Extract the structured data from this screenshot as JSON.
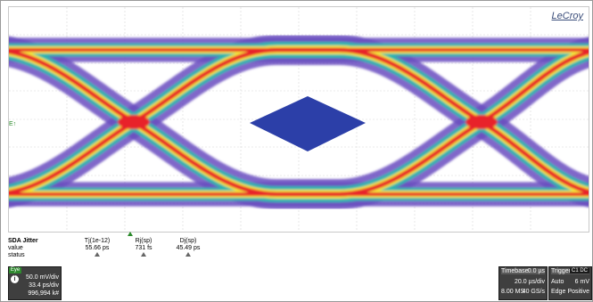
{
  "brand": "LeCroy",
  "colors": {
    "eye_outer": "#6a4ec0",
    "eye_mid": "#26b8b0",
    "eye_inner": "#f4e63a",
    "eye_core": "#e8242c",
    "mask": "#2c3fa8"
  },
  "measurements": {
    "title": "SDA Jitter",
    "row_labels": [
      "value",
      "status"
    ],
    "columns": [
      {
        "name": "Tj(1e-12)",
        "value": "55.66 ps"
      },
      {
        "name": "Rj(sp)",
        "value": "731 fs"
      },
      {
        "name": "Dj(sp)",
        "value": "45.49 ps"
      }
    ]
  },
  "channel": {
    "tag": "Eye",
    "info_icon": "info-icon",
    "vdiv": "50.0 mV/div",
    "hdiv": "33.4 ps/div",
    "count": "996,994 k#"
  },
  "timebase": {
    "label": "Timebase",
    "delay": "0.0 µs",
    "tdiv": "20.0 µs/div",
    "samples": "8.00 MS",
    "rate": "40 GS/s"
  },
  "trigger": {
    "label": "Trigger",
    "badge": "C1 DC",
    "mode": "Auto",
    "level": "6 mV",
    "type": "Edge",
    "slope": "Positive"
  }
}
